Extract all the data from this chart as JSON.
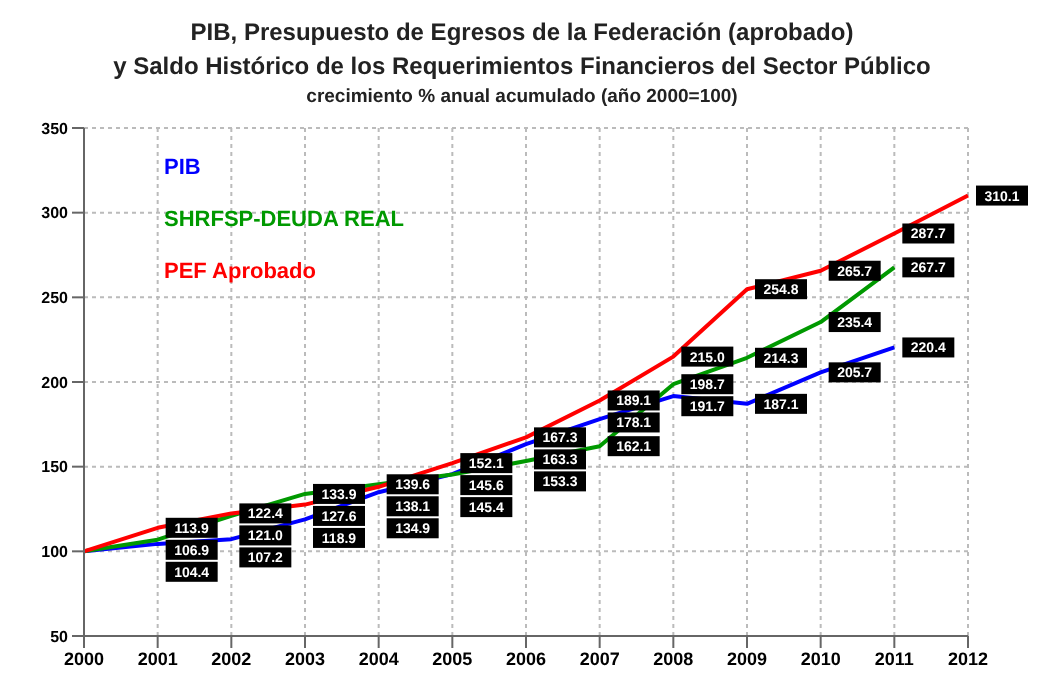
{
  "chart_data": {
    "type": "line",
    "title": "PIB, Presupuesto de Egresos de la Federación (aprobado)\ny Saldo Histórico de los Requerimientos Financieros del Sector Público",
    "subtitle": "crecimiento % anual acumulado  (año 2000=100)",
    "categories": [
      "2000",
      "2001",
      "2002",
      "2003",
      "2004",
      "2005",
      "2006",
      "2007",
      "2008",
      "2009",
      "2010",
      "2011",
      "2012"
    ],
    "series": [
      {
        "name": "PIB",
        "color": "#0000ff",
        "values": [
          100,
          104.4,
          107.2,
          118.9,
          134.9,
          145.6,
          163.3,
          178.1,
          191.7,
          187.1,
          205.7,
          220.4,
          null
        ],
        "value_labels": [
          null,
          "104.4",
          "107.2",
          "118.9",
          "134.9",
          "145.6",
          "163.3",
          "178.1",
          "191.7",
          "187.1",
          "205.7",
          "220.4",
          null
        ]
      },
      {
        "name": "SHRFSP-DEUDA REAL",
        "color": "#009900",
        "values": [
          100,
          106.9,
          121.0,
          133.9,
          139.6,
          145.4,
          153.3,
          162.1,
          198.7,
          214.3,
          235.4,
          267.7,
          null
        ],
        "value_labels": [
          null,
          "106.9",
          "121.0",
          "133.9",
          "139.6",
          "145.4",
          "153.3",
          "162.1",
          "198.7",
          "214.3",
          "235.4",
          "267.7",
          null
        ]
      },
      {
        "name": "PEF Aprobado",
        "color": "#ff0000",
        "values": [
          100,
          113.9,
          122.4,
          127.6,
          138.1,
          152.1,
          167.3,
          189.1,
          215.0,
          254.8,
          265.7,
          287.7,
          310.1
        ],
        "value_labels": [
          null,
          "113.9",
          "122.4",
          "127.6",
          "138.1",
          "152.1",
          "167.3",
          "189.1",
          "215.0",
          "254.8",
          "265.7",
          "287.7",
          "310.1"
        ]
      }
    ],
    "ylim": [
      50,
      350
    ],
    "yticks": [
      50,
      100,
      150,
      200,
      250,
      300,
      350
    ],
    "grid": true,
    "legend": "top left"
  }
}
